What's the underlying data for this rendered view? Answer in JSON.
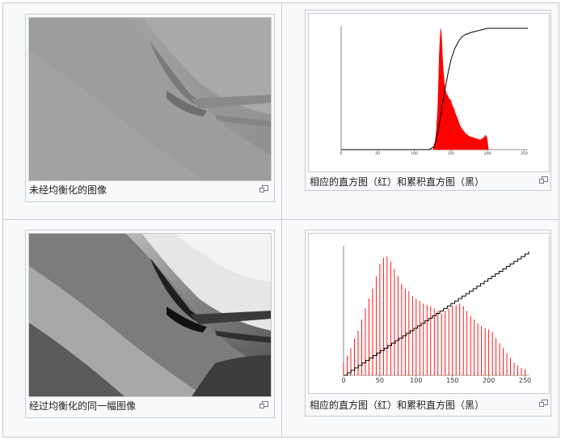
{
  "panels": [
    {
      "caption": "未经均衡化的图像",
      "icon": "magnify-icon"
    },
    {
      "caption": "相应的直方图（红）和累积直方图（黑）",
      "icon": "magnify-icon"
    },
    {
      "caption": "经过均衡化的同一幅图像",
      "icon": "magnify-icon"
    },
    {
      "caption": "相应的直方图（红）和累积直方图（黑）",
      "icon": "magnify-icon"
    }
  ],
  "colors": {
    "histogram": "#ff0000",
    "cumulative": "#000000",
    "border": "#c8ccd1"
  },
  "chart_data": [
    {
      "type": "area",
      "xlim": [
        0,
        255
      ],
      "x_ticks": [
        "0",
        "50",
        "100",
        "150",
        "200",
        "250"
      ],
      "series": [
        {
          "x": [
            126,
            128,
            130,
            132,
            133,
            134,
            135,
            136,
            137,
            138,
            139,
            140,
            141,
            142,
            143,
            144,
            145,
            146,
            147,
            148,
            150,
            152,
            154,
            156,
            158,
            160,
            162,
            165,
            168,
            170,
            175,
            180,
            185,
            190,
            195,
            197,
            199,
            200,
            201
          ],
          "values": [
            0.01,
            0.05,
            0.15,
            0.35,
            0.55,
            0.78,
            0.9,
            1.0,
            0.95,
            0.82,
            0.7,
            0.62,
            0.55,
            0.5,
            0.48,
            0.46,
            0.45,
            0.44,
            0.42,
            0.42,
            0.4,
            0.36,
            0.34,
            0.3,
            0.27,
            0.24,
            0.2,
            0.17,
            0.15,
            0.13,
            0.11,
            0.1,
            0.09,
            0.08,
            0.1,
            0.12,
            0.1,
            0.06,
            0.0
          ]
        },
        {
          "x": [
            0,
            120,
            126,
            130,
            134,
            138,
            142,
            146,
            150,
            155,
            160,
            165,
            170,
            180,
            190,
            200,
            255
          ],
          "values": [
            0,
            0,
            0.02,
            0.08,
            0.2,
            0.36,
            0.5,
            0.63,
            0.74,
            0.83,
            0.89,
            0.93,
            0.95,
            0.97,
            0.985,
            1.0,
            1.0
          ]
        }
      ]
    },
    {
      "type": "bar",
      "xlim": [
        0,
        255
      ],
      "x_ticks": [
        "0",
        "50",
        "100",
        "150",
        "200",
        "250"
      ],
      "series": [
        {
          "x": [
            0,
            5,
            10,
            15,
            20,
            25,
            30,
            35,
            40,
            45,
            50,
            55,
            60,
            65,
            70,
            75,
            80,
            85,
            90,
            95,
            100,
            105,
            110,
            115,
            120,
            125,
            130,
            135,
            140,
            145,
            150,
            155,
            160,
            165,
            170,
            175,
            180,
            185,
            190,
            195,
            200,
            205,
            210,
            215,
            220,
            225,
            230,
            235,
            240,
            245,
            250
          ],
          "values": [
            0.1,
            0.16,
            0.22,
            0.3,
            0.36,
            0.45,
            0.54,
            0.62,
            0.7,
            0.8,
            0.9,
            0.95,
            0.96,
            0.92,
            0.86,
            0.8,
            0.74,
            0.7,
            0.68,
            0.64,
            0.62,
            0.6,
            0.58,
            0.57,
            0.56,
            0.54,
            0.52,
            0.5,
            0.52,
            0.54,
            0.56,
            0.57,
            0.58,
            0.56,
            0.52,
            0.48,
            0.45,
            0.42,
            0.4,
            0.38,
            0.37,
            0.35,
            0.3,
            0.26,
            0.22,
            0.18,
            0.14,
            0.1,
            0.08,
            0.06,
            0.05
          ]
        },
        {
          "x": [
            0,
            255
          ],
          "values": [
            0,
            1
          ]
        }
      ]
    }
  ]
}
